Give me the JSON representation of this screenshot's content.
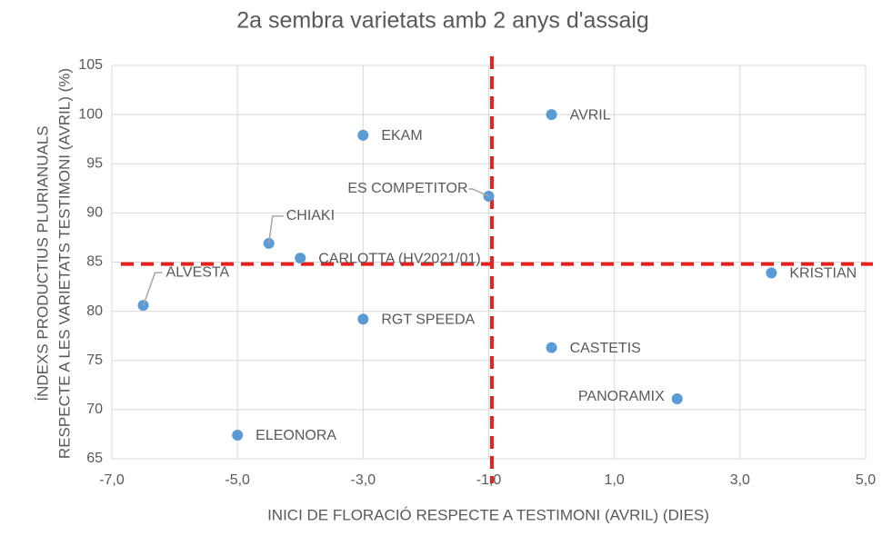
{
  "chart_data": {
    "type": "scatter",
    "title": "2a sembra varietats amb 2 anys d'assaig",
    "xlabel": "INICI DE FLORACIÓ RESPECTE A TESTIMONI (AVRIL) (DIES)",
    "ylabel": [
      "ÍNDEXS PRODUCTIUS PLURIANUALS",
      "RESPECTE A LES VARIETATS TESTIMONI (AVRIL) (%)"
    ],
    "point_labels": [
      "AVRIL",
      "EKAM",
      "ES COMPETITOR",
      "CHIAKI",
      "CARLOTTA (HV2021/01)",
      "ALVESTA",
      "RGT SPEEDA",
      "CASTETIS",
      "PANORAMIX",
      "ELEONORA",
      "KRISTIAN"
    ],
    "x": [
      0,
      -3,
      -1,
      -4.5,
      -4,
      -6.5,
      -3,
      0,
      2,
      -5,
      3.5
    ],
    "values": [
      100,
      97.9,
      91.7,
      86.9,
      85.4,
      80.6,
      79.2,
      76.3,
      71.1,
      67.4,
      83.9
    ],
    "color": "#5b9bd5",
    "xlim": [
      -7,
      5
    ],
    "xticks": [
      {
        "value": -7,
        "label": "-7,0"
      },
      {
        "value": -5,
        "label": "-5,0"
      },
      {
        "value": -3,
        "label": "-3,0"
      },
      {
        "value": -1,
        "label": "-1,0"
      },
      {
        "value": 1,
        "label": "1,0"
      },
      {
        "value": 3,
        "label": "3,0"
      },
      {
        "value": 5,
        "label": "5,0"
      }
    ],
    "ylim": [
      65,
      105
    ],
    "yticks": [
      65,
      70,
      75,
      80,
      85,
      90,
      95,
      100,
      105
    ],
    "grid": true,
    "reference_lines": {
      "x": -0.95,
      "y": 84.8,
      "color": "#e8201e"
    }
  }
}
